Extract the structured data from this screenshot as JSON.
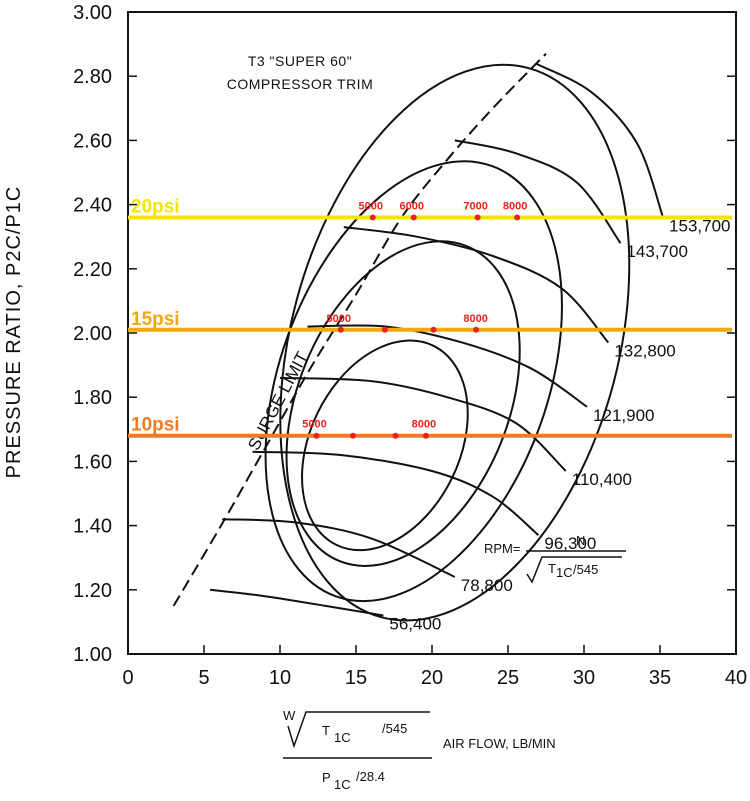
{
  "chart_data": {
    "type": "line",
    "title_lines": [
      "T3 \"SUPER 60\"",
      "COMPRESSOR TRIM"
    ],
    "ylabel": "PRESSURE RATIO, P2C/P1C",
    "xlabel": {
      "numerator_w": "W",
      "numerator_t": "T",
      "numerator_sub": "1C",
      "numerator_rest": "/545",
      "suffix": "AIR FLOW, LB/MIN",
      "denominator_p": "P",
      "denominator_sub": "1C",
      "denominator_rest": "/28.4"
    },
    "xlim": [
      0,
      40
    ],
    "ylim": [
      1.0,
      3.0
    ],
    "x_ticks": [
      "0",
      "5",
      "10",
      "15",
      "20",
      "25",
      "30",
      "35",
      "40"
    ],
    "y_ticks": [
      "1.00",
      "1.20",
      "1.40",
      "1.60",
      "1.80",
      "2.00",
      "2.20",
      "2.40",
      "2.60",
      "2.80",
      "3.00"
    ],
    "rpm_formula": {
      "label": "RPM=",
      "numerator": "N",
      "denominator_t": "T",
      "denominator_sub": "1C",
      "denominator_rest": "/545"
    },
    "surge_limit": {
      "label": "SURGE LIMIT",
      "x": [
        3,
        6,
        9,
        12,
        15,
        18,
        21,
        24,
        27.5
      ],
      "y": [
        1.15,
        1.39,
        1.64,
        1.89,
        2.12,
        2.36,
        2.54,
        2.7,
        2.87
      ]
    },
    "speed_lines": [
      {
        "name": "56,400",
        "x": [
          5.4,
          9,
          13,
          16.8
        ],
        "y": [
          1.2,
          1.18,
          1.15,
          1.12
        ]
      },
      {
        "name": "78,800",
        "x": [
          6.2,
          11,
          16,
          21.5
        ],
        "y": [
          1.42,
          1.41,
          1.36,
          1.24
        ]
      },
      {
        "name": "96,300",
        "x": [
          8.2,
          14,
          20,
          24,
          27
        ],
        "y": [
          1.63,
          1.62,
          1.57,
          1.49,
          1.37
        ]
      },
      {
        "name": "110,400",
        "x": [
          10.0,
          16,
          21,
          25.5,
          28.8
        ],
        "y": [
          1.86,
          1.85,
          1.8,
          1.72,
          1.57
        ]
      },
      {
        "name": "121,900",
        "x": [
          11.8,
          17,
          22,
          26.5,
          30.2
        ],
        "y": [
          2.02,
          2.02,
          1.97,
          1.89,
          1.77
        ]
      },
      {
        "name": "132,800",
        "x": [
          14.2,
          19,
          24,
          28.5,
          31.6
        ],
        "y": [
          2.33,
          2.3,
          2.24,
          2.14,
          1.97
        ]
      },
      {
        "name": "143,700",
        "x": [
          21.5,
          25.5,
          29.5,
          32.4
        ],
        "y": [
          2.6,
          2.56,
          2.47,
          2.28
        ]
      },
      {
        "name": "153,700",
        "x": [
          26.8,
          30.5,
          33.5,
          35.2
        ],
        "y": [
          2.84,
          2.75,
          2.59,
          2.36
        ]
      }
    ],
    "efficiency_islands": [
      {
        "cx": 21.5,
        "cy": 1.97,
        "rx": 12.2,
        "ry": 0.77,
        "rot": 15
      },
      {
        "cx": 18.8,
        "cy": 1.85,
        "rx": 10.2,
        "ry": 0.62,
        "rot": 20
      },
      {
        "cx": 18.1,
        "cy": 1.78,
        "rx": 8.7,
        "ry": 0.46,
        "rot": 22
      },
      {
        "cx": 16.9,
        "cy": 1.65,
        "rx": 6.8,
        "ry": 0.3,
        "rot": 26
      }
    ],
    "boost_lines": [
      {
        "label": "20psi",
        "y": 2.36,
        "color": "#f2e600",
        "rpm_labels": [
          "5000",
          "6000",
          "7000",
          "8000"
        ],
        "rpm_x": [
          16.1,
          18.8,
          23.0,
          25.6
        ]
      },
      {
        "label": "15psi",
        "y": 2.01,
        "color": "#f3a80c",
        "rpm_labels": [
          "5000",
          "8000"
        ],
        "rpm_x": [
          14.0,
          23.0
        ],
        "dot_x": [
          14.0,
          16.9,
          20.1,
          22.9
        ]
      },
      {
        "label": "10psi",
        "y": 1.68,
        "color": "#ee7a24",
        "rpm_labels": [
          "5000",
          "8000"
        ],
        "rpm_x": [
          12.4,
          19.6
        ],
        "dot_x": [
          12.4,
          14.8,
          17.6,
          19.6
        ]
      }
    ]
  }
}
